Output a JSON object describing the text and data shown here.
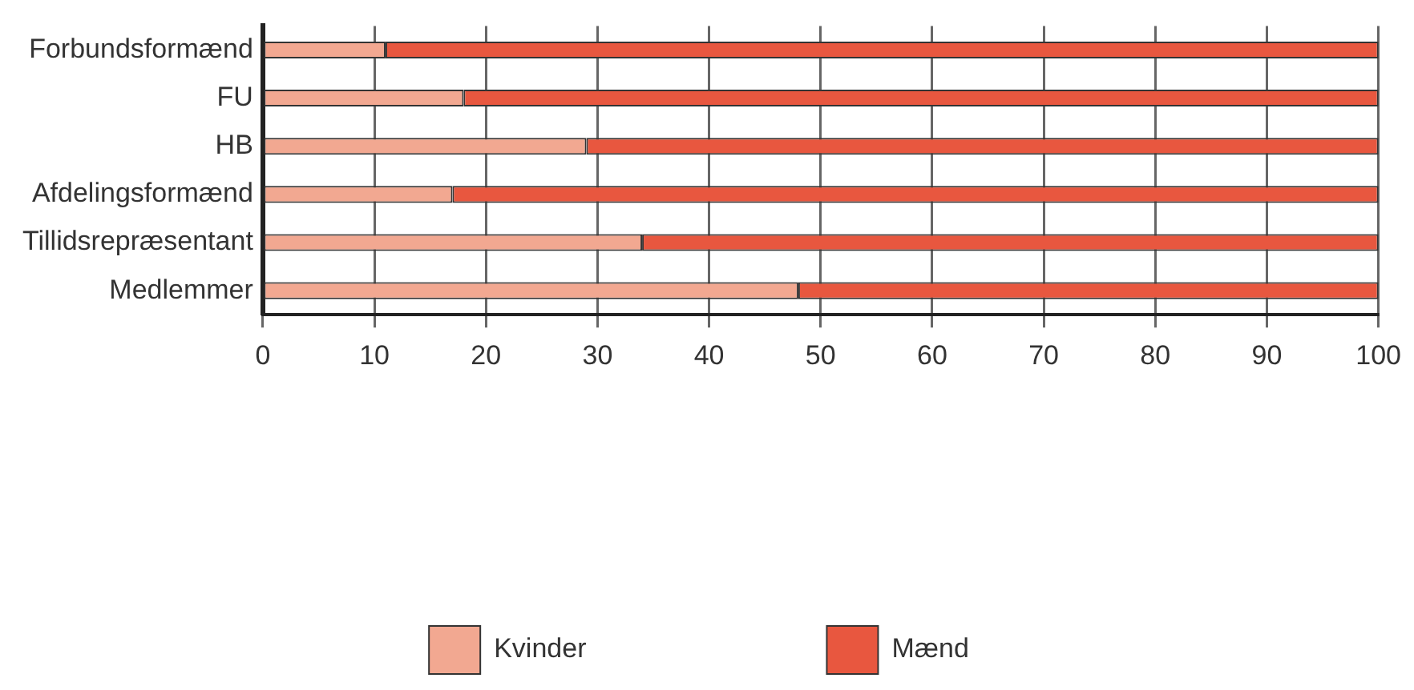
{
  "chart_data": {
    "type": "bar",
    "orientation": "horizontal",
    "stacked": true,
    "categories": [
      "Forbundsformænd",
      "FU",
      "HB",
      "Afdelingsformænd",
      "Tillidsrepræsentant",
      "Medlemmer"
    ],
    "series": [
      {
        "name": "Kvinder",
        "color": "#f2a891",
        "values": [
          11,
          18,
          29,
          17,
          34,
          48
        ]
      },
      {
        "name": "Mænd",
        "color": "#e8573f",
        "values": [
          89,
          82,
          71,
          83,
          66,
          52
        ]
      }
    ],
    "xlim": [
      0,
      100
    ],
    "xticks": [
      0,
      10,
      20,
      30,
      40,
      50,
      60,
      70,
      80,
      90,
      100
    ],
    "grid": "x",
    "legend": "bottom"
  }
}
